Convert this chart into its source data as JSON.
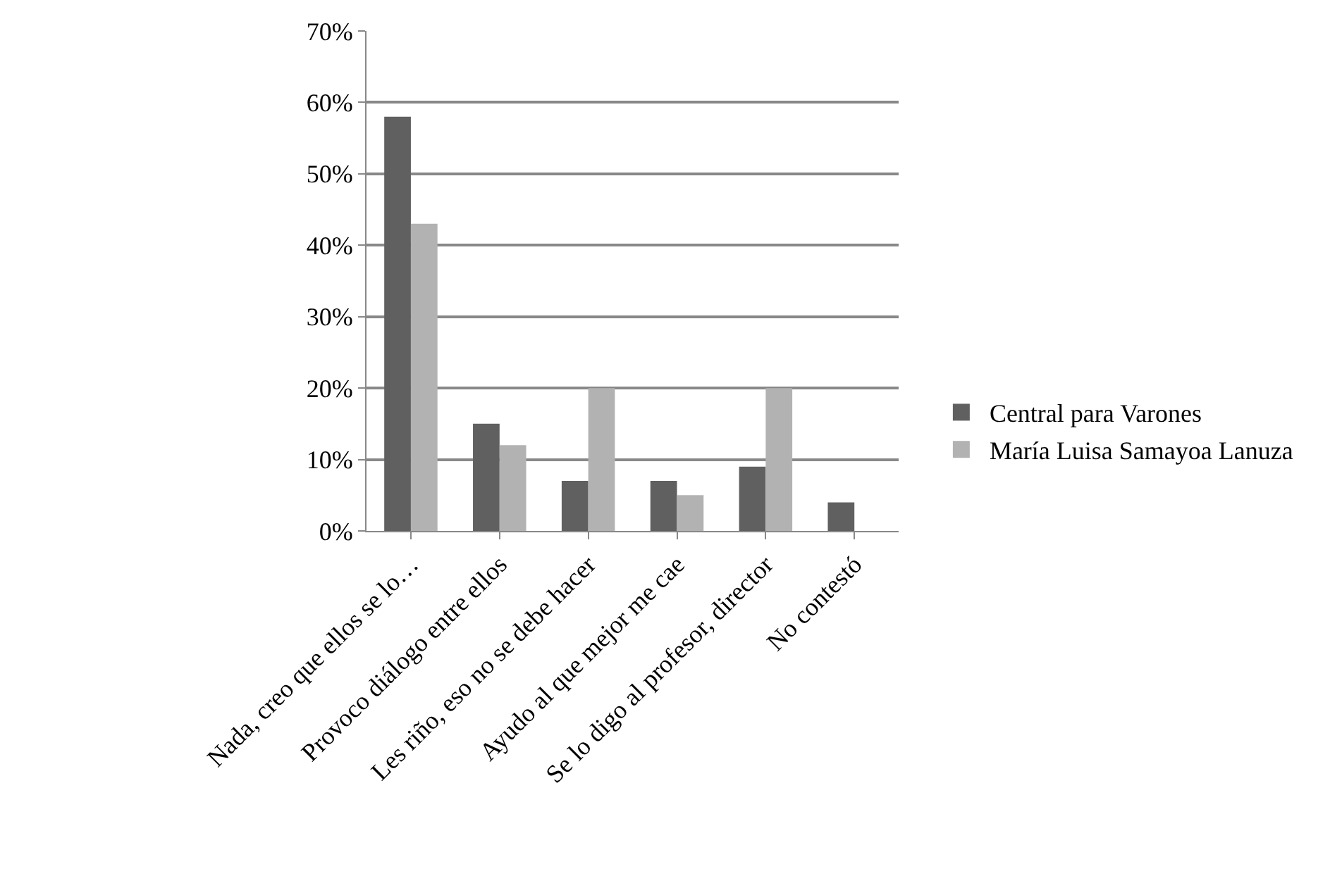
{
  "chart_data": {
    "type": "bar",
    "categories": [
      "Nada, creo que ellos se lo…",
      "Provoco diálogo entre ellos",
      "Les riño, eso no se debe hacer",
      "Ayudo al que mejor me cae",
      "Se lo digo al profesor, director",
      "No contestó"
    ],
    "series": [
      {
        "name": "Central para Varones",
        "color": "#606060",
        "values": [
          58,
          15,
          7,
          7,
          9,
          4
        ]
      },
      {
        "name": "María Luisa Samayoa Lanuza",
        "color": "#b2b2b2",
        "values": [
          43,
          12,
          20,
          5,
          20,
          0
        ]
      }
    ],
    "ylim": [
      0,
      70
    ],
    "yticks": [
      {
        "value": 0,
        "label": "0%"
      },
      {
        "value": 10,
        "label": "10%"
      },
      {
        "value": 20,
        "label": "20%"
      },
      {
        "value": 30,
        "label": "30%"
      },
      {
        "value": 40,
        "label": "40%"
      },
      {
        "value": 50,
        "label": "50%"
      },
      {
        "value": 60,
        "label": "60%"
      },
      {
        "value": 70,
        "label": "70%"
      }
    ],
    "grid": "y",
    "legend": "right"
  }
}
